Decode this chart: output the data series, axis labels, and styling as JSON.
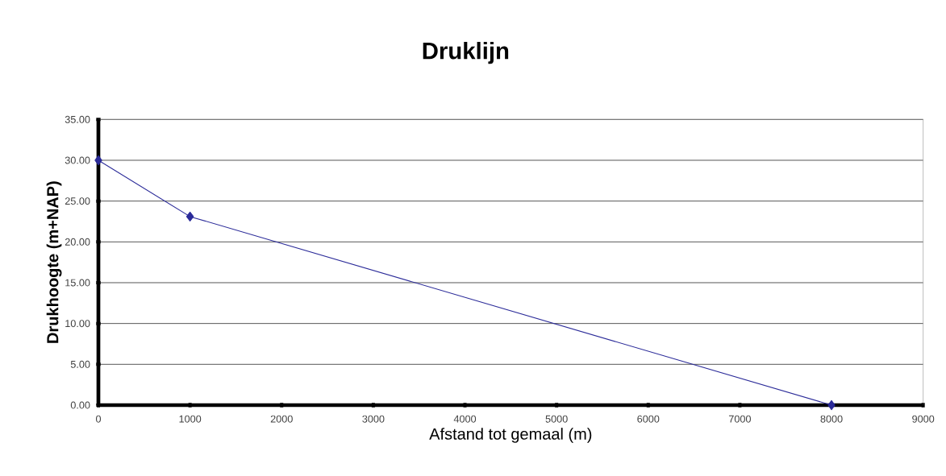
{
  "chart_data": {
    "type": "line",
    "title": "Druklijn",
    "xlabel": "Afstand tot gemaal (m)",
    "ylabel": "Drukhoogte (m+NAP)",
    "x": [
      0,
      1000,
      8000
    ],
    "series": [
      {
        "color": "#2b2b99",
        "values": [
          30,
          23.1,
          0
        ]
      }
    ],
    "xlim": [
      0,
      9000
    ],
    "ylim": [
      0,
      35
    ],
    "xticks": [
      0,
      1000,
      2000,
      3000,
      4000,
      5000,
      6000,
      7000,
      8000,
      9000
    ],
    "yticks": [
      {
        "value": 0,
        "label": "0.00"
      },
      {
        "value": 5,
        "label": "5.00"
      },
      {
        "value": 10,
        "label": "10.00"
      },
      {
        "value": 15,
        "label": "15.00"
      },
      {
        "value": 20,
        "label": "20.00"
      },
      {
        "value": 25,
        "label": "25.00"
      },
      {
        "value": 30,
        "label": "30.00"
      },
      {
        "value": 35,
        "label": "35.00"
      }
    ],
    "grid": "y",
    "marker": "diamond",
    "line_style": "solid"
  }
}
